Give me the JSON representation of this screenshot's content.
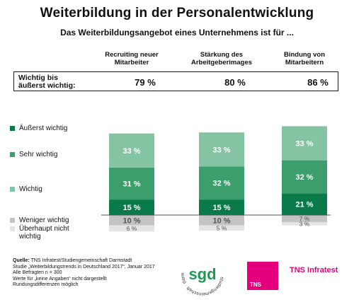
{
  "title": "Weiterbildung in der Personalentwicklung",
  "subtitle": "Das Weiterbildungsangebot eines Unternehmens ist für ...",
  "columns": [
    {
      "label_line1": "Recruiting neuer",
      "label_line2": "Mitarbeiter"
    },
    {
      "label_line1": "Stärkung des",
      "label_line2": "Arbeitgeberimages"
    },
    {
      "label_line1": "Bindung von",
      "label_line2": "Mitarbeitern"
    }
  ],
  "summary": {
    "label_line1": "Wichtig bis",
    "label_line2": "äußerst wichtig:",
    "values": [
      "79 %",
      "80 %",
      "86 %"
    ]
  },
  "legend": [
    {
      "line1": "Äußerst wichtig",
      "line2": "",
      "color": "#0a7a4a"
    },
    {
      "line1": "Sehr wichtig",
      "line2": "",
      "color": "#3c9e6c"
    },
    {
      "line1": "Wichtig",
      "line2": "",
      "color": "#84c4a3"
    },
    {
      "line1": "Weniger wichtig",
      "line2": "",
      "color": "#c3c3c3"
    },
    {
      "line1": "Überhaupt nicht",
      "line2": "wichtig",
      "color": "#e4e4e4"
    }
  ],
  "chart_data": {
    "type": "bar",
    "stacked": true,
    "diverging": true,
    "categories": [
      "Recruiting neuer Mitarbeiter",
      "Stärkung des Arbeitgeberimages",
      "Bindung von Mitarbeitern"
    ],
    "series": [
      {
        "name": "Äußerst wichtig",
        "values": [
          15,
          15,
          21
        ],
        "labels": [
          "15 %",
          "15 %",
          "21 %"
        ],
        "color": "#0a7a4a",
        "text_color": "#ffffff",
        "direction": "up"
      },
      {
        "name": "Sehr wichtig",
        "values": [
          31,
          32,
          32
        ],
        "labels": [
          "31 %",
          "32 %",
          "32 %"
        ],
        "color": "#3c9e6c",
        "text_color": "#ffffff",
        "direction": "up"
      },
      {
        "name": "Wichtig",
        "values": [
          33,
          33,
          33
        ],
        "labels": [
          "33 %",
          "33 %",
          "33 %"
        ],
        "color": "#84c4a3",
        "text_color": "#ffffff",
        "direction": "up"
      },
      {
        "name": "Weniger wichtig",
        "values": [
          10,
          10,
          7
        ],
        "labels": [
          "10 %",
          "10 %",
          "7 %"
        ],
        "color": "#c3c3c3",
        "text_color": "#555555",
        "direction": "down"
      },
      {
        "name": "Überhaupt nicht wichtig",
        "values": [
          6,
          5,
          3
        ],
        "labels": [
          "6 %",
          "5 %",
          "3 %"
        ],
        "color": "#e4e4e4",
        "text_color": "#555555",
        "direction": "down"
      }
    ],
    "unit": "%"
  },
  "source": {
    "label": "Quelle:",
    "line1": "TNS Infratest/Studiengemeinschaft Darmstadt",
    "line2": "Studie „Weiterbildungstrends in Deutschland 2017“, Januar 2017",
    "line3": "Alle Befragten n = 300",
    "line4": "Werte für „keine Angaben“ nicht dargestellt",
    "line5": "Rundungsdifferenzen möglich"
  },
  "logos": {
    "sgd_text": "sgd",
    "sgd_ring_text": "studiengemeinschaft · darmstadt",
    "tns_box_text": "TNS",
    "tns_infratest_text": "TNS Infratest"
  }
}
